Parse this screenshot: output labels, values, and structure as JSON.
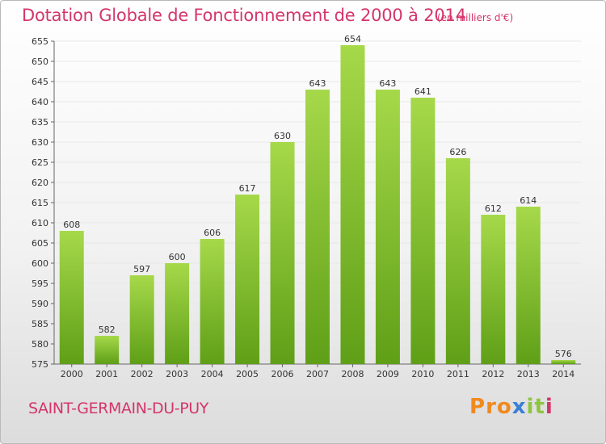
{
  "title": "Dotation Globale de Fonctionnement de 2000 à 2014",
  "subtitle": "(en milliers d'€)",
  "commune": "SAINT-GERMAIN-DU-PUY",
  "logo": {
    "text": "Proxiti",
    "letters": [
      "P",
      "r",
      "o",
      "x",
      "i",
      "t",
      "i"
    ],
    "colors": [
      "#f08a1e",
      "#f08a1e",
      "#f08a1e",
      "#3a7fd5",
      "#8cc63f",
      "#8cc63f",
      "#d4356b"
    ]
  },
  "colors": {
    "title": "#d4356b",
    "bar_light": "#a6d94a",
    "bar_dark": "#5f9f17",
    "grid": "#e8e8e8",
    "axis": "#666666"
  },
  "chart_data": {
    "type": "bar",
    "categories": [
      "2000",
      "2001",
      "2002",
      "2003",
      "2004",
      "2005",
      "2006",
      "2007",
      "2008",
      "2009",
      "2010",
      "2011",
      "2012",
      "2013",
      "2014"
    ],
    "values": [
      608,
      582,
      597,
      600,
      606,
      617,
      630,
      643,
      654,
      643,
      641,
      626,
      612,
      614,
      576
    ],
    "ylim": [
      575,
      655
    ],
    "yticks": [
      575,
      580,
      585,
      590,
      595,
      600,
      605,
      610,
      615,
      620,
      625,
      630,
      635,
      640,
      645,
      650,
      655
    ],
    "grid": true,
    "data_labels": true
  }
}
